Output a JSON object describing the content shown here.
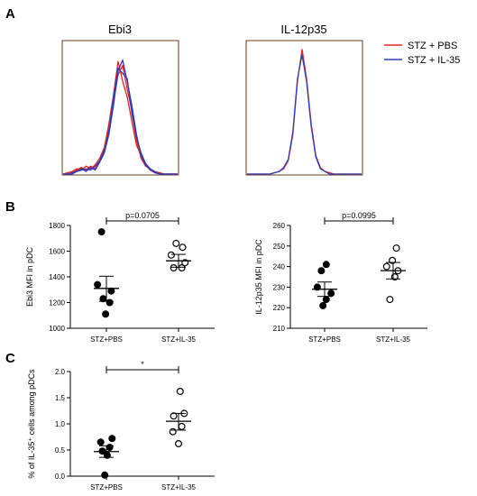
{
  "panels": {
    "A": "A",
    "B": "B",
    "C": "C"
  },
  "colors": {
    "stz_pbs": "#e8231e",
    "stz_il35": "#2c3fb8",
    "histogram_frame": "#6b3a1e",
    "axis": "#000000"
  },
  "legend": [
    {
      "label": "STZ + PBS",
      "color": "#e8231e"
    },
    {
      "label": "STZ + IL-35",
      "color": "#2c3fb8"
    }
  ],
  "chart_data": [
    {
      "id": "ebi3-hist",
      "type": "line",
      "title": "Ebi3",
      "xlabel": "",
      "ylabel": "",
      "grid": false,
      "x": [
        0,
        4,
        8,
        12,
        16,
        20,
        24,
        28,
        32,
        36,
        40,
        44,
        48,
        52,
        56,
        60,
        64,
        68,
        72,
        76,
        80,
        84,
        88,
        92,
        96,
        100
      ],
      "series": [
        {
          "color": "#e8231e",
          "values": [
            0,
            0,
            1,
            3,
            5,
            3,
            6,
            4,
            10,
            18,
            34,
            55,
            75,
            82,
            64,
            48,
            26,
            12,
            6,
            4,
            2,
            1,
            0,
            0,
            0,
            0
          ]
        },
        {
          "color": "#e8231e",
          "values": [
            0,
            1,
            2,
            4,
            3,
            6,
            4,
            7,
            12,
            20,
            38,
            60,
            85,
            70,
            58,
            40,
            22,
            14,
            8,
            3,
            1,
            1,
            0,
            0,
            0,
            0
          ]
        },
        {
          "color": "#2c3fb8",
          "values": [
            0,
            0,
            0,
            2,
            4,
            2,
            5,
            3,
            9,
            16,
            30,
            52,
            78,
            86,
            70,
            52,
            30,
            14,
            7,
            3,
            2,
            0,
            0,
            0,
            0,
            0
          ]
        },
        {
          "color": "#2c3fb8",
          "values": [
            0,
            0,
            1,
            2,
            3,
            4,
            3,
            6,
            10,
            18,
            32,
            58,
            80,
            76,
            72,
            46,
            28,
            16,
            8,
            4,
            1,
            0,
            0,
            0,
            0,
            0
          ]
        }
      ]
    },
    {
      "id": "il12p35-hist",
      "type": "line",
      "title": "IL-12p35",
      "xlabel": "",
      "ylabel": "",
      "grid": false,
      "x": [
        0,
        4,
        8,
        12,
        16,
        20,
        24,
        28,
        32,
        36,
        40,
        44,
        48,
        52,
        56,
        60,
        64,
        68,
        72,
        76,
        80,
        84,
        88,
        92,
        96,
        100
      ],
      "series": [
        {
          "color": "#e8231e",
          "values": [
            0,
            0,
            0,
            0,
            0,
            0,
            1,
            2,
            4,
            10,
            30,
            70,
            94,
            72,
            38,
            14,
            5,
            2,
            1,
            0,
            0,
            0,
            0,
            0,
            0,
            0
          ]
        },
        {
          "color": "#2c3fb8",
          "values": [
            0,
            0,
            0,
            0,
            0,
            0,
            1,
            2,
            5,
            11,
            32,
            72,
            90,
            70,
            36,
            13,
            4,
            2,
            0,
            0,
            0,
            0,
            0,
            0,
            0,
            0
          ]
        }
      ]
    },
    {
      "id": "ebi3-mfi",
      "type": "scatter",
      "title": "",
      "xlabel": "",
      "ylabel": "Ebi3 MFI in pDC",
      "categories": [
        "STZ+PBS",
        "STZ+IL-35"
      ],
      "ylim": [
        1000,
        1800
      ],
      "yticks": [
        1000,
        1200,
        1400,
        1600,
        1800
      ],
      "grid": false,
      "groups": [
        {
          "name": "STZ+PBS",
          "filled": true,
          "mean": 1310,
          "sem_low": 1210,
          "sem_high": 1405,
          "points": [
            1750,
            1340,
            1290,
            1230,
            1200,
            1110
          ],
          "jitter": [
            -0.3,
            -0.55,
            0.3,
            -0.2,
            0.2,
            -0.05
          ]
        },
        {
          "name": "STZ+IL-35",
          "filled": false,
          "mean": 1525,
          "sem_low": 1475,
          "sem_high": 1575,
          "points": [
            1660,
            1630,
            1570,
            1510,
            1470,
            1470
          ],
          "jitter": [
            -0.15,
            0.25,
            -0.45,
            0.4,
            -0.3,
            0.2
          ]
        }
      ],
      "bracket_label": "p=0.0705"
    },
    {
      "id": "il12p35-mfi",
      "type": "scatter",
      "title": "",
      "xlabel": "",
      "ylabel": "IL-12p35 MFI in pDC",
      "categories": [
        "STZ+PBS",
        "STZ+IL-35"
      ],
      "ylim": [
        210,
        260
      ],
      "yticks": [
        210,
        220,
        230,
        240,
        250,
        260
      ],
      "grid": false,
      "groups": [
        {
          "name": "STZ+PBS",
          "filled": true,
          "mean": 229,
          "sem_low": 225.5,
          "sem_high": 232.5,
          "points": [
            241,
            238,
            230,
            227,
            224,
            221
          ],
          "jitter": [
            0.1,
            -0.2,
            -0.45,
            0.4,
            0.1,
            -0.1
          ]
        },
        {
          "name": "STZ+IL-35",
          "filled": false,
          "mean": 238,
          "sem_low": 234,
          "sem_high": 242,
          "points": [
            249,
            243,
            240,
            238,
            235,
            224
          ],
          "jitter": [
            0.2,
            -0.05,
            -0.4,
            0.3,
            0.1,
            -0.2
          ]
        }
      ],
      "bracket_label": "p=0.0995"
    },
    {
      "id": "il35-percent",
      "type": "scatter",
      "title": "",
      "xlabel": "",
      "ylabel": "% of IL-35⁺ cells among pDCs",
      "categories": [
        "STZ+PBS",
        "STZ+IL-35"
      ],
      "ylim": [
        0,
        2
      ],
      "yticks": [
        "0.0",
        "0.5",
        "1.0",
        "1.5",
        "2.0"
      ],
      "grid": false,
      "groups": [
        {
          "name": "STZ+PBS",
          "filled": true,
          "mean": 0.47,
          "sem_low": 0.36,
          "sem_high": 0.58,
          "points": [
            0.72,
            0.65,
            0.55,
            0.48,
            0.4,
            0.02
          ],
          "jitter": [
            0.35,
            -0.35,
            0.2,
            -0.25,
            0.05,
            -0.1
          ]
        },
        {
          "name": "STZ+IL-35",
          "filled": false,
          "mean": 1.05,
          "sem_low": 0.88,
          "sem_high": 1.2,
          "points": [
            1.62,
            1.2,
            1.15,
            0.95,
            0.85,
            0.62
          ],
          "jitter": [
            0.1,
            0.35,
            -0.3,
            0.2,
            -0.35,
            0.0
          ]
        }
      ],
      "bracket_label": "*"
    }
  ]
}
